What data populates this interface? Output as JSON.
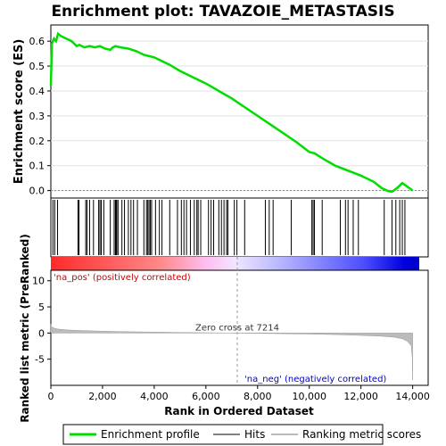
{
  "chart_data": [
    {
      "type": "line",
      "title": "Enrichment plot: TAVAZOIE_METASTASIS",
      "ylabel": "Enrichment score (ES)",
      "ylim": [
        -0.03,
        0.665
      ],
      "xlim": [
        0,
        14600
      ],
      "y_ticks": [
        "0.0",
        "0.1",
        "0.2",
        "0.3",
        "0.4",
        "0.5",
        "0.6"
      ],
      "y_tick_values": [
        0,
        0.1,
        0.2,
        0.3,
        0.4,
        0.5,
        0.6
      ],
      "grid": true,
      "line_color": "#00dd00",
      "series": [
        {
          "name": "Enrichment profile",
          "x": [
            0,
            40,
            120,
            200,
            280,
            400,
            600,
            800,
            1000,
            1100,
            1300,
            1500,
            1700,
            1900,
            2100,
            2300,
            2400,
            2500,
            2700,
            3000,
            3300,
            3600,
            3800,
            4000,
            4300,
            4600,
            5000,
            5500,
            6000,
            6500,
            7000,
            7500,
            8000,
            8500,
            9000,
            9500,
            10000,
            10200,
            10500,
            11000,
            11500,
            12000,
            12500,
            12800,
            13000,
            13200,
            13400,
            13600,
            13800,
            14000
          ],
          "y": [
            0.42,
            0.59,
            0.61,
            0.6,
            0.63,
            0.62,
            0.61,
            0.6,
            0.58,
            0.585,
            0.575,
            0.58,
            0.575,
            0.58,
            0.57,
            0.565,
            0.575,
            0.58,
            0.575,
            0.57,
            0.56,
            0.545,
            0.54,
            0.535,
            0.52,
            0.505,
            0.48,
            0.455,
            0.43,
            0.4,
            0.37,
            0.335,
            0.3,
            0.265,
            0.23,
            0.195,
            0.155,
            0.15,
            0.13,
            0.1,
            0.08,
            0.06,
            0.035,
            0.01,
            0.0,
            -0.005,
            0.01,
            0.03,
            0.015,
            0.0
          ]
        }
      ],
      "hits": [
        80,
        150,
        260,
        1050,
        1090,
        1350,
        1400,
        1500,
        1650,
        1850,
        1900,
        1950,
        2050,
        2300,
        2450,
        2500,
        2520,
        2550,
        2600,
        2750,
        2850,
        3000,
        3100,
        3200,
        3350,
        3600,
        3700,
        3750,
        3800,
        3850,
        3900,
        4050,
        4200,
        4300,
        4600,
        4900,
        5050,
        5150,
        5250,
        5400,
        5550,
        5650,
        5700,
        5800,
        6100,
        6200,
        6300,
        6500,
        6600,
        6700,
        6800,
        6850,
        7100,
        7200,
        7500,
        8300,
        8450,
        8600,
        9300,
        10100,
        10150,
        10200,
        10500,
        11200,
        11400,
        11500,
        11700,
        11900,
        12900,
        13200,
        13350,
        13500,
        13600,
        13700
      ]
    },
    {
      "type": "area",
      "ylabel": "Ranked list metric (PreRanked)",
      "xlabel": "Rank in Ordered Dataset",
      "ylim": [
        -10,
        12
      ],
      "xlim": [
        0,
        14600
      ],
      "y_ticks": [
        "-5",
        "0",
        "5",
        "10"
      ],
      "y_tick_values": [
        -5,
        0,
        5,
        10
      ],
      "x_ticks": [
        "0",
        "2,000",
        "4,000",
        "6,000",
        "8,000",
        "10,000",
        "12,000",
        "14,000"
      ],
      "x_tick_values": [
        0,
        2000,
        4000,
        6000,
        8000,
        10000,
        12000,
        14000
      ],
      "series": [
        {
          "name": "Ranking metric scores",
          "x": [
            0,
            20,
            60,
            150,
            300,
            600,
            1000,
            2000,
            3000,
            4000,
            5000,
            6000,
            7214,
            8000,
            9000,
            10000,
            11000,
            12000,
            12800,
            13300,
            13600,
            13800,
            13950,
            13990,
            14000
          ],
          "y": [
            1.7,
            1.3,
            1.1,
            0.9,
            0.75,
            0.6,
            0.5,
            0.35,
            0.25,
            0.18,
            0.12,
            0.06,
            0.0,
            -0.05,
            -0.12,
            -0.2,
            -0.3,
            -0.45,
            -0.6,
            -0.8,
            -1.1,
            -1.6,
            -2.5,
            -5.0,
            -9.0
          ]
        }
      ],
      "annotations": {
        "positive": "'na_pos' (positively correlated)",
        "negative": "'na_neg' (negatively correlated)",
        "zero_cross": "Zero cross at 7214",
        "zero_cross_x": 7214
      }
    }
  ],
  "legend": {
    "items": [
      {
        "label": "Enrichment profile",
        "color": "#00dd00"
      },
      {
        "label": "Hits",
        "color": "#000000"
      },
      {
        "label": "Ranking metric scores",
        "color": "#bbbbbb"
      }
    ]
  },
  "colors": {
    "pos_annotation": "#cc0000",
    "neg_annotation": "#0000cc",
    "bar_red": "#ff0000",
    "bar_blue": "#0000ff"
  }
}
